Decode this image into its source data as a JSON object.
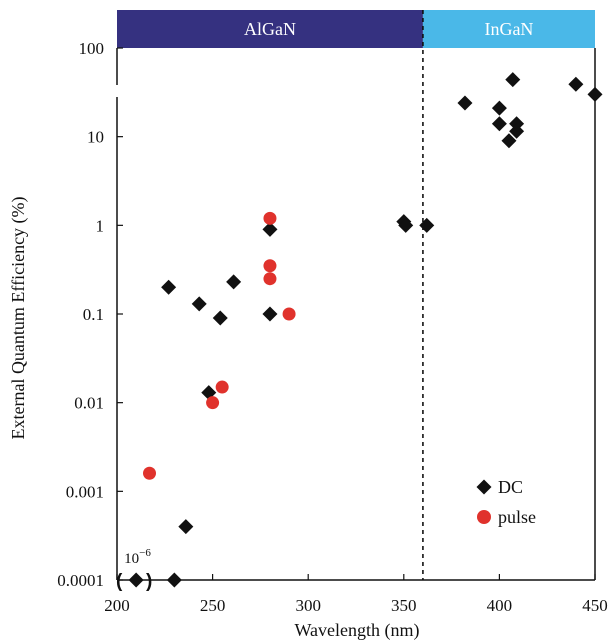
{
  "chart_data": {
    "type": "scatter",
    "xlabel": "Wavelength (nm)",
    "ylabel": "External Quantum Efficiency (%)",
    "xlim": [
      200,
      450
    ],
    "ylim": [
      0.0001,
      100
    ],
    "y_scale": "log",
    "x_ticks": [
      200,
      250,
      300,
      350,
      400,
      450
    ],
    "y_ticks": [
      {
        "value": 0.0001,
        "label": "0.0001"
      },
      {
        "value": 0.001,
        "label": "0.001"
      },
      {
        "value": 0.01,
        "label": "0.01"
      },
      {
        "value": 0.1,
        "label": "0.1"
      },
      {
        "value": 1,
        "label": "1"
      },
      {
        "value": 10,
        "label": "10"
      },
      {
        "value": 100,
        "label": "100"
      }
    ],
    "bands": [
      {
        "label": "AlGaN",
        "x_range": [
          200,
          360
        ],
        "color": "#353180"
      },
      {
        "label": "InGaN",
        "x_range": [
          360,
          450
        ],
        "color": "#4ab8e8"
      }
    ],
    "divider_x": 360,
    "annotation": {
      "text": "10",
      "superscript": "−6",
      "x": 210,
      "y": 0.0001
    },
    "legend_position": "bottom-right",
    "series": [
      {
        "name": "DC",
        "marker": "diamond",
        "color": "#111111",
        "points": [
          [
            210,
            0.0001
          ],
          [
            227,
            0.2
          ],
          [
            230,
            0.0001
          ],
          [
            236,
            0.0004
          ],
          [
            243,
            0.13
          ],
          [
            248,
            0.013
          ],
          [
            254,
            0.09
          ],
          [
            261,
            0.23
          ],
          [
            280,
            0.9
          ],
          [
            280,
            0.1
          ],
          [
            350,
            1.1
          ],
          [
            351,
            1.0
          ],
          [
            362,
            1.0
          ],
          [
            382,
            24
          ],
          [
            400,
            21
          ],
          [
            400,
            14
          ],
          [
            405,
            9
          ],
          [
            407,
            44
          ],
          [
            409,
            14
          ],
          [
            409,
            11.5
          ],
          [
            440,
            39
          ],
          [
            450,
            30
          ]
        ]
      },
      {
        "name": "pulse",
        "marker": "circle",
        "color": "#e0322c",
        "points": [
          [
            217,
            0.0016
          ],
          [
            250,
            0.01
          ],
          [
            255,
            0.015
          ],
          [
            280,
            1.2
          ],
          [
            280,
            0.35
          ],
          [
            280,
            0.25
          ],
          [
            290,
            0.1
          ]
        ]
      }
    ]
  }
}
